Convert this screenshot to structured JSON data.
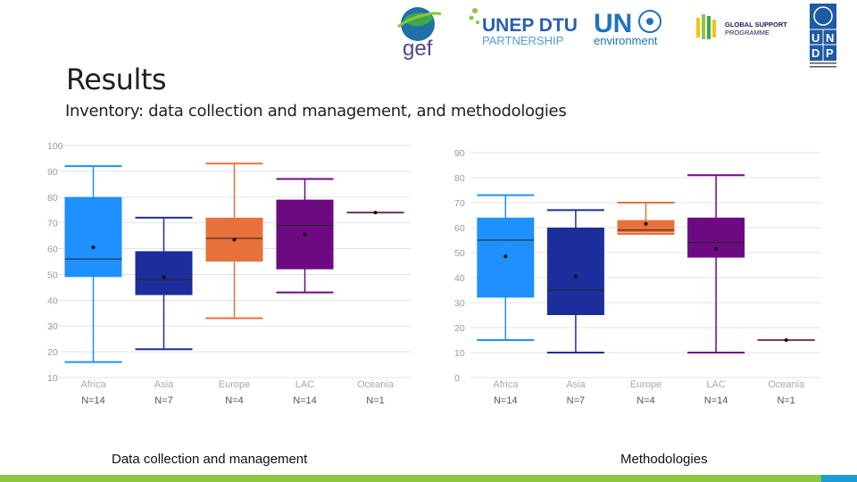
{
  "slide": {
    "title": "Results",
    "subtitle": "Inventory: data collection and management, and methodologies"
  },
  "logos": {
    "gef": "gef",
    "unep_line1": "UNEP DTU",
    "unep_line2": "PARTNERSHIP",
    "un_line1": "UN",
    "un_line2": "environment",
    "gsp_line1": "GLOBAL SUPPORT",
    "gsp_line2": "PROGRAMME",
    "undp": [
      "U",
      "N",
      "D",
      "P"
    ]
  },
  "captions": {
    "left": "Data collection and management",
    "right": "Methodologies"
  },
  "chart_data": [
    {
      "type": "box",
      "title": "",
      "xlabel": "",
      "ylabel": "",
      "ylim": [
        10,
        100
      ],
      "yticks": [
        10,
        20,
        30,
        40,
        50,
        60,
        70,
        80,
        90,
        100
      ],
      "grid": true,
      "legend": "none",
      "caption": "Data collection and management",
      "categories": [
        "Africa",
        "Asia",
        "Europe",
        "LAC",
        "Oceania"
      ],
      "counts": [
        "N=14",
        "N=7",
        "N=4",
        "N=14",
        "N=1"
      ],
      "boxes": [
        {
          "category": "Africa",
          "min": 16,
          "q1": 49,
          "median": 56,
          "q3": 80,
          "max": 92,
          "mean": 60.5,
          "color": "#1e90ff"
        },
        {
          "category": "Asia",
          "min": 21,
          "q1": 42,
          "median": 48,
          "q3": 59,
          "max": 72,
          "mean": 49,
          "color": "#1c2d9c"
        },
        {
          "category": "Europe",
          "min": 33,
          "q1": 55,
          "median": 64,
          "q3": 72,
          "max": 93,
          "mean": 63.5,
          "color": "#e8703a"
        },
        {
          "category": "LAC",
          "min": 43,
          "q1": 52,
          "median": 69,
          "q3": 79,
          "max": 87,
          "mean": 65.5,
          "color": "#6d0a82"
        },
        {
          "category": "Oceania",
          "min": 74,
          "q1": 74,
          "median": 74,
          "q3": 74,
          "max": 74,
          "mean": 74,
          "color": "#c65bb4"
        }
      ]
    },
    {
      "type": "box",
      "title": "",
      "xlabel": "",
      "ylabel": "",
      "ylim": [
        0,
        90
      ],
      "yticks": [
        0,
        10,
        20,
        30,
        40,
        50,
        60,
        70,
        80,
        90
      ],
      "grid": true,
      "legend": "none",
      "caption": "Methodologies",
      "categories": [
        "Africa",
        "Asia",
        "Europe",
        "LAC",
        "Oceania"
      ],
      "counts": [
        "N=14",
        "N=7",
        "N=4",
        "N=14",
        "N=1"
      ],
      "boxes": [
        {
          "category": "Africa",
          "min": 15,
          "q1": 32,
          "median": 55,
          "q3": 64,
          "max": 73,
          "mean": 48.5,
          "color": "#1e90ff"
        },
        {
          "category": "Asia",
          "min": 10,
          "q1": 25,
          "median": 35,
          "q3": 60,
          "max": 67,
          "mean": 40.5,
          "color": "#1c2d9c"
        },
        {
          "category": "Europe",
          "min": 57.5,
          "q1": 58,
          "median": 59,
          "q3": 63,
          "max": 70,
          "mean": 61.5,
          "color": "#e8703a"
        },
        {
          "category": "LAC",
          "min": 10,
          "q1": 48,
          "median": 54,
          "q3": 64,
          "max": 81,
          "mean": 51.5,
          "color": "#6d0a82"
        },
        {
          "category": "Oceania",
          "min": 15,
          "q1": 15,
          "median": 15,
          "q3": 15,
          "max": 15,
          "mean": 15,
          "color": "#c65bb4"
        }
      ]
    }
  ]
}
